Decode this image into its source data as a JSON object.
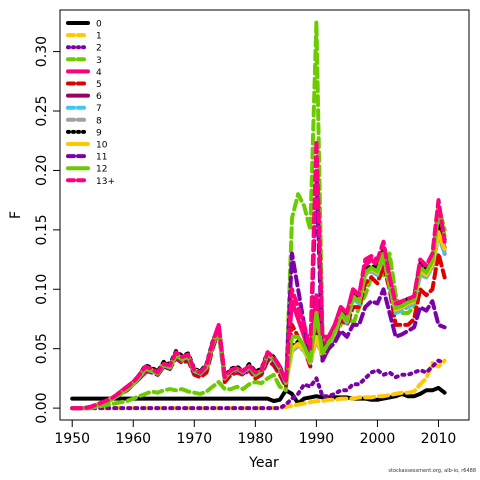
{
  "chart_data": {
    "type": "line",
    "xlabel": "Year",
    "ylabel": "F",
    "xlim": [
      1948,
      2015
    ],
    "ylim": [
      -0.01,
      0.335
    ],
    "xticks": [
      1950,
      1960,
      1970,
      1980,
      1990,
      2000,
      2010
    ],
    "yticks": [
      0.0,
      0.05,
      0.1,
      0.15,
      0.2,
      0.25,
      0.3
    ],
    "ytick_labels": [
      "0.00",
      "0.05",
      "0.10",
      "0.15",
      "0.20",
      "0.25",
      "0.30"
    ],
    "legend_position": "top-left",
    "grid": false,
    "x": [
      1950,
      1951,
      1952,
      1953,
      1954,
      1955,
      1956,
      1957,
      1958,
      1959,
      1960,
      1961,
      1962,
      1963,
      1964,
      1965,
      1966,
      1967,
      1968,
      1969,
      1970,
      1971,
      1972,
      1973,
      1974,
      1975,
      1976,
      1977,
      1978,
      1979,
      1980,
      1981,
      1982,
      1983,
      1984,
      1985,
      1986,
      1987,
      1988,
      1989,
      1990,
      1991,
      1992,
      1993,
      1994,
      1995,
      1996,
      1997,
      1998,
      1999,
      2000,
      2001,
      2002,
      2003,
      2004,
      2005,
      2006,
      2007,
      2008,
      2009,
      2010,
      2011
    ],
    "series": [
      {
        "name": "0",
        "color": "#000000",
        "dash": "solid",
        "values": [
          0.008,
          0.008,
          0.008,
          0.008,
          0.008,
          0.008,
          0.008,
          0.008,
          0.008,
          0.008,
          0.008,
          0.008,
          0.008,
          0.008,
          0.008,
          0.008,
          0.008,
          0.008,
          0.008,
          0.008,
          0.008,
          0.008,
          0.008,
          0.008,
          0.008,
          0.008,
          0.008,
          0.008,
          0.008,
          0.008,
          0.008,
          0.008,
          0.008,
          0.006,
          0.007,
          0.015,
          0.012,
          0.004,
          0.008,
          0.009,
          0.01,
          0.009,
          0.009,
          0.009,
          0.009,
          0.009,
          0.008,
          0.008,
          0.008,
          0.007,
          0.007,
          0.008,
          0.009,
          0.01,
          0.012,
          0.01,
          0.01,
          0.012,
          0.015,
          0.015,
          0.017,
          0.013
        ]
      },
      {
        "name": "1",
        "color": "#FFC800",
        "dash": "dash",
        "values": [
          0,
          0,
          0,
          0,
          0,
          0,
          0,
          0,
          0,
          0,
          0,
          0,
          0,
          0,
          0,
          0,
          0,
          0,
          0,
          0,
          0,
          0,
          0,
          0,
          0,
          0,
          0,
          0,
          0,
          0,
          0,
          0,
          0,
          0,
          0,
          0.001,
          0.002,
          0.003,
          0.004,
          0.005,
          0.006,
          0.006,
          0.007,
          0.007,
          0.008,
          0.008,
          0.008,
          0.009,
          0.009,
          0.009,
          0.01,
          0.01,
          0.011,
          0.012,
          0.013,
          0.013,
          0.014,
          0.02,
          0.025,
          0.038,
          0.035,
          0.04
        ]
      },
      {
        "name": "2",
        "color": "#7B00A8",
        "dash": "dot",
        "values": [
          0,
          0,
          0,
          0,
          0,
          0,
          0,
          0,
          0,
          0,
          0,
          0,
          0,
          0,
          0,
          0,
          0,
          0,
          0,
          0,
          0,
          0,
          0,
          0,
          0,
          0,
          0,
          0,
          0,
          0,
          0,
          0,
          0,
          0,
          0,
          0.003,
          0.008,
          0.012,
          0.02,
          0.018,
          0.025,
          0.01,
          0.01,
          0.012,
          0.015,
          0.015,
          0.02,
          0.02,
          0.025,
          0.03,
          0.032,
          0.028,
          0.03,
          0.026,
          0.028,
          0.028,
          0.03,
          0.032,
          0.03,
          0.035,
          0.04,
          0.038
        ]
      },
      {
        "name": "3",
        "color": "#6CCB00",
        "dash": "dash",
        "values": [
          0,
          0,
          0,
          0,
          0.001,
          0.002,
          0.003,
          0.004,
          0.005,
          0.006,
          0.008,
          0.01,
          0.012,
          0.014,
          0.013,
          0.015,
          0.016,
          0.015,
          0.016,
          0.014,
          0.013,
          0.012,
          0.014,
          0.018,
          0.022,
          0.016,
          0.016,
          0.018,
          0.016,
          0.02,
          0.022,
          0.021,
          0.025,
          0.028,
          0.018,
          0.015,
          0.16,
          0.18,
          0.17,
          0.15,
          0.325,
          0.06,
          0.05,
          0.06,
          0.07,
          0.08,
          0.07,
          0.085,
          0.095,
          0.11,
          0.115,
          0.11,
          0.13,
          0.095,
          0.08,
          0.08,
          0.085,
          0.12,
          0.115,
          0.125,
          0.17,
          0.15
        ]
      },
      {
        "name": "4",
        "color": "#FF0080",
        "dash": "solid",
        "values": [
          0,
          0,
          0,
          0.001,
          0.002,
          0.004,
          0.006,
          0.01,
          0.013,
          0.016,
          0.02,
          0.025,
          0.03,
          0.032,
          0.03,
          0.035,
          0.034,
          0.045,
          0.04,
          0.042,
          0.03,
          0.028,
          0.035,
          0.055,
          0.07,
          0.025,
          0.03,
          0.032,
          0.03,
          0.035,
          0.028,
          0.03,
          0.045,
          0.04,
          0.032,
          0.02,
          0.09,
          0.075,
          0.06,
          0.045,
          0.095,
          0.05,
          0.06,
          0.07,
          0.085,
          0.08,
          0.1,
          0.095,
          0.12,
          0.125,
          0.12,
          0.135,
          0.11,
          0.085,
          0.085,
          0.09,
          0.09,
          0.12,
          0.115,
          0.125,
          0.16,
          0.13
        ]
      },
      {
        "name": "5",
        "color": "#E00000",
        "dash": "dash",
        "values": [
          0,
          0,
          0,
          0.001,
          0.002,
          0.004,
          0.006,
          0.009,
          0.012,
          0.015,
          0.02,
          0.025,
          0.032,
          0.03,
          0.028,
          0.035,
          0.033,
          0.042,
          0.038,
          0.04,
          0.028,
          0.026,
          0.03,
          0.05,
          0.065,
          0.022,
          0.028,
          0.03,
          0.028,
          0.032,
          0.025,
          0.028,
          0.04,
          0.036,
          0.028,
          0.018,
          0.07,
          0.06,
          0.05,
          0.035,
          0.075,
          0.04,
          0.05,
          0.06,
          0.075,
          0.07,
          0.085,
          0.085,
          0.105,
          0.11,
          0.105,
          0.12,
          0.1,
          0.07,
          0.07,
          0.07,
          0.075,
          0.1,
          0.095,
          0.1,
          0.13,
          0.11
        ]
      },
      {
        "name": "6",
        "color": "#9C0060",
        "dash": "solid",
        "values": [
          0,
          0,
          0,
          0.001,
          0.003,
          0.005,
          0.007,
          0.01,
          0.014,
          0.018,
          0.022,
          0.028,
          0.035,
          0.033,
          0.03,
          0.038,
          0.036,
          0.046,
          0.042,
          0.044,
          0.032,
          0.03,
          0.036,
          0.055,
          0.068,
          0.026,
          0.032,
          0.034,
          0.03,
          0.036,
          0.03,
          0.032,
          0.046,
          0.042,
          0.034,
          0.022,
          0.05,
          0.055,
          0.05,
          0.04,
          0.06,
          0.045,
          0.055,
          0.065,
          0.08,
          0.075,
          0.095,
          0.09,
          0.115,
          0.118,
          0.115,
          0.13,
          0.105,
          0.085,
          0.088,
          0.09,
          0.092,
          0.118,
          0.115,
          0.122,
          0.15,
          0.135
        ]
      },
      {
        "name": "7",
        "color": "#3CC8F0",
        "dash": "dash",
        "values": [
          0,
          0,
          0,
          0.001,
          0.002,
          0.004,
          0.006,
          0.009,
          0.012,
          0.016,
          0.02,
          0.025,
          0.032,
          0.031,
          0.028,
          0.035,
          0.034,
          0.043,
          0.04,
          0.042,
          0.031,
          0.029,
          0.034,
          0.052,
          0.066,
          0.025,
          0.03,
          0.032,
          0.029,
          0.034,
          0.028,
          0.03,
          0.044,
          0.04,
          0.032,
          0.02,
          0.048,
          0.052,
          0.048,
          0.038,
          0.058,
          0.043,
          0.052,
          0.062,
          0.078,
          0.072,
          0.092,
          0.088,
          0.112,
          0.115,
          0.112,
          0.128,
          0.102,
          0.08,
          0.082,
          0.085,
          0.088,
          0.112,
          0.11,
          0.118,
          0.145,
          0.13
        ]
      },
      {
        "name": "8",
        "color": "#A0A0A0",
        "dash": "dash",
        "values": [
          0,
          0,
          0,
          0.001,
          0.002,
          0.004,
          0.006,
          0.009,
          0.012,
          0.016,
          0.02,
          0.026,
          0.033,
          0.031,
          0.029,
          0.036,
          0.034,
          0.044,
          0.041,
          0.043,
          0.031,
          0.029,
          0.035,
          0.053,
          0.066,
          0.025,
          0.031,
          0.033,
          0.03,
          0.035,
          0.029,
          0.031,
          0.045,
          0.041,
          0.033,
          0.021,
          0.049,
          0.053,
          0.049,
          0.039,
          0.059,
          0.044,
          0.053,
          0.063,
          0.079,
          0.073,
          0.093,
          0.089,
          0.113,
          0.116,
          0.113,
          0.129,
          0.103,
          0.082,
          0.084,
          0.087,
          0.089,
          0.114,
          0.111,
          0.119,
          0.146,
          0.132
        ]
      },
      {
        "name": "9",
        "color": "#000000",
        "dash": "dot",
        "values": [
          0,
          0,
          0,
          0.001,
          0.003,
          0.005,
          0.007,
          0.01,
          0.014,
          0.018,
          0.022,
          0.028,
          0.036,
          0.034,
          0.031,
          0.039,
          0.037,
          0.048,
          0.044,
          0.046,
          0.033,
          0.031,
          0.037,
          0.056,
          0.068,
          0.027,
          0.033,
          0.035,
          0.031,
          0.037,
          0.031,
          0.033,
          0.047,
          0.043,
          0.035,
          0.023,
          0.052,
          0.056,
          0.051,
          0.041,
          0.062,
          0.046,
          0.056,
          0.066,
          0.082,
          0.076,
          0.096,
          0.092,
          0.116,
          0.12,
          0.117,
          0.132,
          0.107,
          0.087,
          0.089,
          0.092,
          0.094,
          0.122,
          0.118,
          0.126,
          0.155,
          0.142
        ]
      },
      {
        "name": "10",
        "color": "#FFC800",
        "dash": "solid",
        "values": [
          0,
          0,
          0,
          0.001,
          0.003,
          0.005,
          0.007,
          0.01,
          0.013,
          0.017,
          0.021,
          0.027,
          0.034,
          0.032,
          0.03,
          0.037,
          0.035,
          0.045,
          0.042,
          0.044,
          0.032,
          0.03,
          0.035,
          0.054,
          0.067,
          0.026,
          0.031,
          0.033,
          0.03,
          0.035,
          0.029,
          0.031,
          0.045,
          0.041,
          0.033,
          0.021,
          0.05,
          0.054,
          0.049,
          0.039,
          0.06,
          0.044,
          0.054,
          0.064,
          0.08,
          0.074,
          0.094,
          0.09,
          0.114,
          0.117,
          0.114,
          0.13,
          0.104,
          0.083,
          0.085,
          0.088,
          0.09,
          0.116,
          0.112,
          0.121,
          0.148,
          0.134
        ]
      },
      {
        "name": "11",
        "color": "#7B00A8",
        "dash": "dash",
        "values": [
          0,
          0,
          0,
          0.001,
          0.002,
          0.004,
          0.006,
          0.009,
          0.012,
          0.016,
          0.02,
          0.025,
          0.032,
          0.03,
          0.028,
          0.035,
          0.033,
          0.043,
          0.04,
          0.042,
          0.03,
          0.028,
          0.033,
          0.052,
          0.065,
          0.024,
          0.03,
          0.032,
          0.029,
          0.034,
          0.027,
          0.03,
          0.043,
          0.039,
          0.031,
          0.019,
          0.13,
          0.1,
          0.07,
          0.04,
          0.2,
          0.04,
          0.05,
          0.055,
          0.065,
          0.06,
          0.07,
          0.07,
          0.085,
          0.09,
          0.088,
          0.1,
          0.08,
          0.06,
          0.062,
          0.065,
          0.068,
          0.085,
          0.082,
          0.09,
          0.07,
          0.068
        ]
      },
      {
        "name": "12",
        "color": "#6CCB00",
        "dash": "solid",
        "values": [
          0,
          0,
          0,
          0.001,
          0.002,
          0.004,
          0.006,
          0.009,
          0.012,
          0.016,
          0.02,
          0.026,
          0.033,
          0.031,
          0.029,
          0.036,
          0.034,
          0.044,
          0.041,
          0.043,
          0.031,
          0.029,
          0.034,
          0.053,
          0.066,
          0.025,
          0.031,
          0.033,
          0.03,
          0.035,
          0.028,
          0.031,
          0.045,
          0.041,
          0.033,
          0.021,
          0.06,
          0.06,
          0.052,
          0.04,
          0.08,
          0.046,
          0.055,
          0.065,
          0.08,
          0.074,
          0.094,
          0.09,
          0.114,
          0.118,
          0.115,
          0.13,
          0.104,
          0.084,
          0.086,
          0.089,
          0.091,
          0.118,
          0.114,
          0.124,
          0.165,
          0.145
        ]
      },
      {
        "name": "13+",
        "color": "#FF0080",
        "dash": "dash",
        "values": [
          0,
          0,
          0,
          0.001,
          0.003,
          0.005,
          0.007,
          0.01,
          0.014,
          0.018,
          0.022,
          0.028,
          0.035,
          0.033,
          0.03,
          0.037,
          0.036,
          0.047,
          0.043,
          0.045,
          0.032,
          0.03,
          0.036,
          0.055,
          0.07,
          0.026,
          0.032,
          0.034,
          0.031,
          0.036,
          0.03,
          0.032,
          0.047,
          0.043,
          0.035,
          0.022,
          0.1,
          0.085,
          0.07,
          0.05,
          0.225,
          0.06,
          0.06,
          0.07,
          0.085,
          0.08,
          0.1,
          0.095,
          0.125,
          0.128,
          0.125,
          0.14,
          0.11,
          0.088,
          0.09,
          0.092,
          0.094,
          0.125,
          0.12,
          0.13,
          0.175,
          0.14
        ]
      }
    ]
  },
  "footer": {
    "credit": "stockassessment.org, alb-io, r6488"
  }
}
